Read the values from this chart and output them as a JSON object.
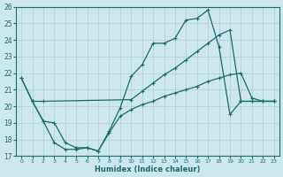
{
  "xlabel": "Humidex (Indice chaleur)",
  "bg_color": "#cce8ec",
  "grid_color": "#aacfd4",
  "line_color": "#1a6b6b",
  "xlim": [
    -0.5,
    23.5
  ],
  "ylim": [
    17,
    26
  ],
  "xticks": [
    0,
    1,
    2,
    3,
    4,
    5,
    6,
    7,
    8,
    9,
    10,
    11,
    12,
    13,
    14,
    15,
    16,
    17,
    18,
    19,
    20,
    21,
    22,
    23
  ],
  "yticks": [
    17,
    18,
    19,
    20,
    21,
    22,
    23,
    24,
    25,
    26
  ],
  "line1_x": [
    0,
    1,
    2,
    10,
    11,
    12,
    13,
    14,
    15,
    16,
    17,
    18,
    19,
    20,
    21,
    22,
    23
  ],
  "line1_y": [
    21.7,
    20.3,
    20.3,
    20.4,
    20.9,
    21.4,
    21.9,
    22.3,
    22.8,
    23.3,
    23.8,
    24.3,
    24.6,
    20.3,
    20.3,
    20.3,
    20.3
  ],
  "line2_x": [
    0,
    1,
    2,
    3,
    4,
    5,
    6,
    7,
    8,
    9,
    10,
    11,
    12,
    13,
    14,
    15,
    16,
    17,
    18,
    19,
    20,
    21,
    22,
    23
  ],
  "line2_y": [
    21.7,
    20.3,
    19.1,
    17.8,
    17.4,
    17.4,
    17.5,
    17.3,
    18.5,
    19.9,
    21.8,
    22.5,
    23.8,
    23.8,
    24.1,
    25.2,
    25.3,
    25.8,
    23.6,
    19.5,
    20.3,
    20.3,
    20.3,
    20.3
  ],
  "line3_x": [
    1,
    2,
    3,
    4,
    5,
    6,
    7,
    8,
    9,
    10,
    11,
    12,
    13,
    14,
    15,
    16,
    17,
    18,
    19,
    20,
    21,
    22,
    23
  ],
  "line3_y": [
    20.3,
    19.1,
    19.0,
    17.8,
    17.5,
    17.5,
    17.3,
    18.4,
    19.4,
    19.8,
    20.1,
    20.3,
    20.6,
    20.8,
    21.0,
    21.2,
    21.5,
    21.7,
    21.9,
    22.0,
    20.5,
    20.3,
    20.3
  ]
}
